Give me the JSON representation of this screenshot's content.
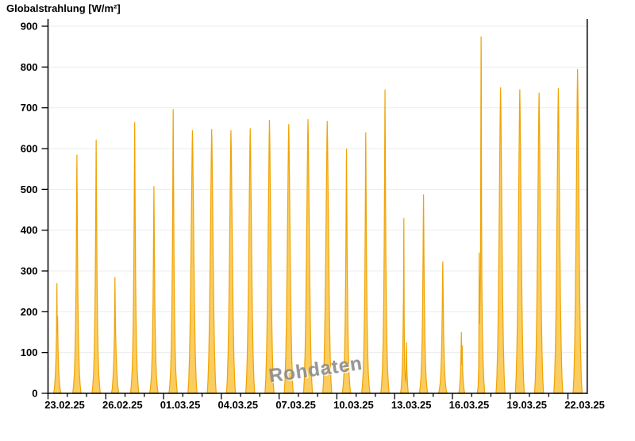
{
  "title": "Globalstrahlung [W/m²]",
  "watermark": "Rohdaten",
  "colors": {
    "area_fill": "#FBCD60",
    "area_stroke": "#F0A305",
    "gridline": "#ECECEC",
    "axis": "#000000",
    "label": "#000000",
    "watermark": "#8F8F8F",
    "background": "#FFFFFF"
  },
  "chart_data": {
    "type": "area",
    "title": "Globalstrahlung [W/m²]",
    "xlabel": "",
    "ylabel": "Globalstrahlung [W/m²]",
    "ylim": [
      0,
      900
    ],
    "yticks": [
      0,
      100,
      200,
      300,
      400,
      500,
      600,
      700,
      800,
      900
    ],
    "grid": "horizontal",
    "legend": "none",
    "x_is_time": true,
    "days_total": 28,
    "xtick_labels": [
      "23.02.25",
      "26.02.25",
      "01.03.25",
      "04.03.25",
      "07.03.25",
      "10.03.25",
      "13.03.25",
      "16.03.25",
      "19.03.25",
      "22.03.25"
    ],
    "xtick_label_every_days": 3,
    "shapes": {
      "narrow": [
        [
          -5.2,
          0
        ],
        [
          -4.2,
          0.03
        ],
        [
          -3.2,
          0.08
        ],
        [
          -2.4,
          0.16
        ],
        [
          -1.7,
          0.28
        ],
        [
          -1.1,
          0.45
        ],
        [
          -0.65,
          0.65
        ],
        [
          -0.35,
          0.82
        ],
        [
          -0.15,
          0.93
        ],
        [
          0,
          1
        ],
        [
          0.15,
          0.93
        ],
        [
          0.35,
          0.82
        ],
        [
          0.65,
          0.65
        ],
        [
          1.1,
          0.45
        ],
        [
          1.7,
          0.28
        ],
        [
          2.4,
          0.16
        ],
        [
          3.2,
          0.08
        ],
        [
          4.2,
          0.03
        ],
        [
          5.2,
          0
        ]
      ],
      "wide": [
        [
          -5.6,
          0
        ],
        [
          -4.6,
          0.05
        ],
        [
          -3.6,
          0.15
        ],
        [
          -2.7,
          0.3
        ],
        [
          -1.9,
          0.5
        ],
        [
          -1.3,
          0.68
        ],
        [
          -0.8,
          0.82
        ],
        [
          -0.4,
          0.93
        ],
        [
          0,
          1
        ],
        [
          0.4,
          0.93
        ],
        [
          0.8,
          0.82
        ],
        [
          1.3,
          0.68
        ],
        [
          1.9,
          0.5
        ],
        [
          2.7,
          0.3
        ],
        [
          3.6,
          0.15
        ],
        [
          4.6,
          0.05
        ],
        [
          5.6,
          0
        ]
      ]
    },
    "days": [
      {
        "date": "23.02.25",
        "peak": 270,
        "shape": "custom",
        "profile": [
          [
            -5,
            0
          ],
          [
            -4,
            12
          ],
          [
            -3,
            40
          ],
          [
            -2.1,
            85
          ],
          [
            -1.4,
            150
          ],
          [
            -0.9,
            270
          ],
          [
            -0.55,
            150
          ],
          [
            -0.1,
            190
          ],
          [
            0.4,
            120
          ],
          [
            1,
            70
          ],
          [
            1.8,
            38
          ],
          [
            2.8,
            14
          ],
          [
            4,
            0
          ]
        ]
      },
      {
        "date": "24.02.25",
        "peak": 585,
        "shape": "narrow"
      },
      {
        "date": "25.02.25",
        "peak": 622,
        "shape": "narrow"
      },
      {
        "date": "26.02.25",
        "peak": 285,
        "shape": "custom",
        "profile": [
          [
            -5,
            0
          ],
          [
            -4,
            10
          ],
          [
            -3,
            38
          ],
          [
            -2,
            80
          ],
          [
            -1.2,
            150
          ],
          [
            -0.6,
            285
          ],
          [
            -0.1,
            190
          ],
          [
            0.4,
            135
          ],
          [
            1.1,
            85
          ],
          [
            1.9,
            48
          ],
          [
            2.9,
            18
          ],
          [
            4.2,
            0
          ]
        ]
      },
      {
        "date": "27.02.25",
        "peak": 665,
        "shape": "narrow"
      },
      {
        "date": "28.02.25",
        "peak": 508,
        "shape": "narrow"
      },
      {
        "date": "01.03.25",
        "peak": 697,
        "shape": "narrow"
      },
      {
        "date": "02.03.25",
        "peak": 645,
        "shape": "wide"
      },
      {
        "date": "03.03.25",
        "peak": 648,
        "shape": "wide"
      },
      {
        "date": "04.03.25",
        "peak": 645,
        "shape": "wide"
      },
      {
        "date": "05.03.25",
        "peak": 650,
        "shape": "wide"
      },
      {
        "date": "06.03.25",
        "peak": 670,
        "shape": "wide"
      },
      {
        "date": "07.03.25",
        "peak": 660,
        "shape": "wide"
      },
      {
        "date": "08.03.25",
        "peak": 672,
        "shape": "wide"
      },
      {
        "date": "09.03.25",
        "peak": 668,
        "shape": "wide"
      },
      {
        "date": "10.03.25",
        "peak": 600,
        "shape": "narrow"
      },
      {
        "date": "11.03.25",
        "peak": 640,
        "shape": "narrow"
      },
      {
        "date": "12.03.25",
        "peak": 745,
        "shape": "narrow"
      },
      {
        "date": "13.03.25",
        "peak": 430,
        "shape": "custom",
        "profile": [
          [
            -4.8,
            0
          ],
          [
            -3.8,
            12
          ],
          [
            -2.8,
            45
          ],
          [
            -1.8,
            110
          ],
          [
            -1,
            230
          ],
          [
            -0.5,
            430
          ],
          [
            -0.1,
            180
          ],
          [
            0.4,
            70
          ],
          [
            1.2,
            35
          ],
          [
            2,
            30
          ],
          [
            2.8,
            125
          ],
          [
            3.3,
            55
          ],
          [
            4.2,
            18
          ],
          [
            5,
            0
          ]
        ]
      },
      {
        "date": "14.03.25",
        "peak": 488,
        "shape": "narrow"
      },
      {
        "date": "15.03.25",
        "peak": 323,
        "shape": "narrow"
      },
      {
        "date": "16.03.25",
        "peak": 150,
        "shape": "custom",
        "profile": [
          [
            -4.2,
            0
          ],
          [
            -3.2,
            10
          ],
          [
            -2.2,
            38
          ],
          [
            -1.4,
            85
          ],
          [
            -0.8,
            150
          ],
          [
            -0.3,
            70
          ],
          [
            0.2,
            118
          ],
          [
            0.7,
            62
          ],
          [
            1.4,
            32
          ],
          [
            2.3,
            12
          ],
          [
            3.3,
            0
          ]
        ]
      },
      {
        "date": "17.03.25",
        "peak": 875,
        "shape": "custom",
        "profile": [
          [
            -5,
            0
          ],
          [
            -4,
            15
          ],
          [
            -3.2,
            70
          ],
          [
            -2.6,
            345
          ],
          [
            -2.2,
            170
          ],
          [
            -1.6,
            230
          ],
          [
            -1,
            300
          ],
          [
            -0.5,
            700
          ],
          [
            -0.25,
            875
          ],
          [
            0,
            800
          ],
          [
            0.3,
            460
          ],
          [
            0.7,
            280
          ],
          [
            1.3,
            160
          ],
          [
            2.2,
            80
          ],
          [
            3.2,
            30
          ],
          [
            4.4,
            0
          ]
        ]
      },
      {
        "date": "18.03.25",
        "peak": 750,
        "shape": "wide"
      },
      {
        "date": "19.03.25",
        "peak": 745,
        "shape": "wide"
      },
      {
        "date": "20.03.25",
        "peak": 737,
        "shape": "wide"
      },
      {
        "date": "21.03.25",
        "peak": 748,
        "shape": "wide"
      },
      {
        "date": "22.03.25",
        "peak": 795,
        "shape": "wide"
      }
    ]
  }
}
